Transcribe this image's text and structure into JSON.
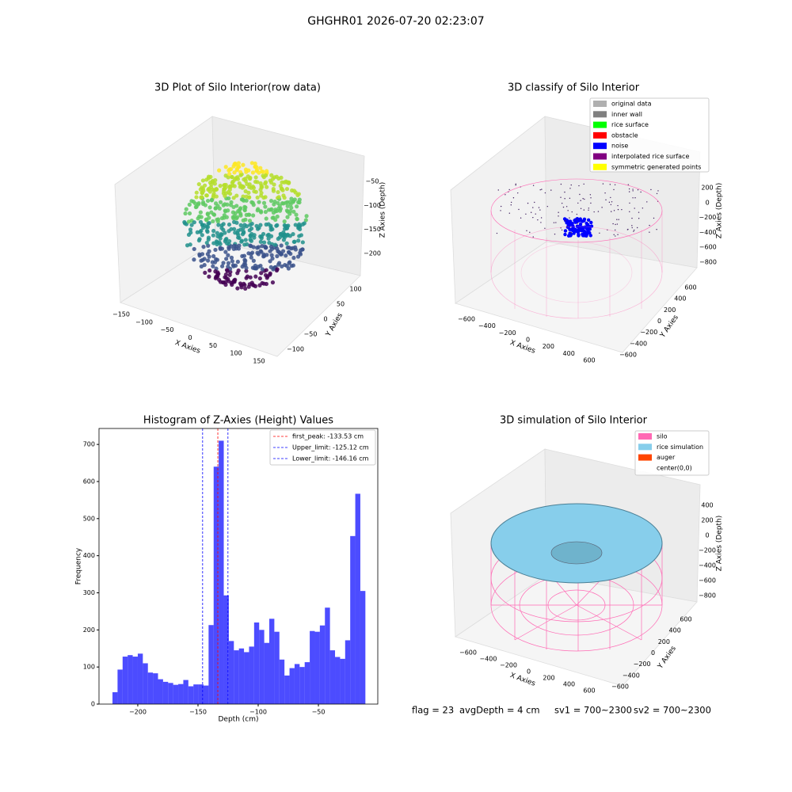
{
  "title": "GHGHR01 2026-07-20 02:23:07",
  "chart_data": [
    {
      "type": "scatter3d",
      "title": "3D Plot of Silo Interior(row data)",
      "xlabel": "X Axies",
      "ylabel": "Y Axies",
      "zlabel": "Z Axies (Depth)",
      "xticks": [
        {
          "value": -150,
          "label": "−150"
        },
        {
          "value": -100,
          "label": "−100"
        },
        {
          "value": -50,
          "label": "−50"
        },
        0,
        50,
        100,
        150
      ],
      "yticks": [
        {
          "value": -100,
          "label": "−100"
        },
        {
          "value": -50,
          "label": "−50"
        },
        0,
        50,
        100
      ],
      "zticks": [
        {
          "value": -50,
          "label": "−50"
        },
        {
          "value": -100,
          "label": "−100"
        },
        {
          "value": -150,
          "label": "−150"
        },
        {
          "value": -200,
          "label": "−200"
        }
      ]
    },
    {
      "type": "scatter3d",
      "title": "3D classify of Silo Interior",
      "xlabel": "X Axies",
      "ylabel": "Y Axies",
      "zlabel": "Z Axies (Depth)",
      "legend": [
        {
          "name": "original data",
          "color": "#b0b0b0"
        },
        {
          "name": "inner wall",
          "color": "#808080"
        },
        {
          "name": "rice surface",
          "color": "#00ff00"
        },
        {
          "name": "obstacle",
          "color": "#ff0000"
        },
        {
          "name": "noise",
          "color": "#0000ff"
        },
        {
          "name": "interpolated rice surface",
          "color": "#800080"
        },
        {
          "name": "symmetric generated points",
          "color": "#ffff00"
        }
      ],
      "xticks": [
        {
          "value": -600,
          "label": "−600"
        },
        {
          "value": -400,
          "label": "−400"
        },
        {
          "value": -200,
          "label": "−200"
        },
        0,
        200,
        400,
        600
      ],
      "yticks": [
        {
          "value": -600,
          "label": "−600"
        },
        {
          "value": -400,
          "label": "−400"
        },
        {
          "value": -200,
          "label": "−200"
        },
        0,
        200,
        400,
        600
      ],
      "zticks": [
        200,
        0,
        {
          "value": -200,
          "label": "−200"
        },
        {
          "value": -400,
          "label": "−400"
        },
        {
          "value": -600,
          "label": "−600"
        },
        {
          "value": -800,
          "label": "−800"
        }
      ]
    },
    {
      "type": "histogram",
      "title": "Histogram of Z-Axies (Height) Values",
      "xlabel": "Depth (cm)",
      "ylabel": "Frequency",
      "color": "#0000ff",
      "bins": [
        -221,
        -216.8,
        -212.6,
        -208.4,
        -204.2,
        -200,
        -195.8,
        -191.6,
        -187.4,
        -183.2,
        -179,
        -174.8,
        -170.6,
        -166.4,
        -162.2,
        -158,
        -153.8,
        -149.6,
        -145.4,
        -141.2,
        -137,
        -132.8,
        -128.6,
        -124.4,
        -120.2,
        -116,
        -111.8,
        -107.6,
        -103.4,
        -99.2,
        -95,
        -90.8,
        -86.6,
        -82.4,
        -78.2,
        -74,
        -69.8,
        -65.6,
        -61.4,
        -57.2,
        -53,
        -48.8,
        -44.6,
        -40.4,
        -36.2,
        -32,
        -27.8,
        -23.6,
        -19.4,
        -15.2,
        -11
      ],
      "counts": [
        32,
        93,
        128,
        132,
        128,
        136,
        110,
        85,
        83,
        67,
        60,
        57,
        52,
        54,
        65,
        48,
        53,
        53,
        50,
        213,
        640,
        710,
        293,
        170,
        145,
        150,
        140,
        155,
        220,
        200,
        165,
        230,
        195,
        120,
        77,
        97,
        108,
        100,
        113,
        197,
        195,
        212,
        260,
        145,
        127,
        122,
        172,
        453,
        567,
        305
      ],
      "xlim": [
        -232.2,
        -0.7
      ],
      "ylim": [
        0,
        743
      ],
      "xticks": [
        {
          "value": -200,
          "label": "−200"
        },
        {
          "value": -150,
          "label": "−150"
        },
        {
          "value": -100,
          "label": "−100"
        },
        {
          "value": -50,
          "label": "−50"
        }
      ],
      "yticks": [
        0,
        100,
        200,
        300,
        400,
        500,
        600,
        700
      ],
      "lines": [
        {
          "name": "first_peak: -133.53 cm",
          "value": -133.53,
          "color": "#ff0000"
        },
        {
          "name": "Upper_limit: -125.12 cm",
          "value": -125.12,
          "color": "#0000ff"
        },
        {
          "name": "Lower_limit: -146.16 cm",
          "value": -146.16,
          "color": "#0000ff"
        }
      ],
      "legend_position": "upper right"
    },
    {
      "type": "surface3d",
      "title": "3D simulation of Silo Interior",
      "xlabel": "X Axies",
      "ylabel": "Y Axies",
      "zlabel": "Z Axies (Depth)",
      "legend": [
        {
          "name": "silo",
          "color": "#ff69b4"
        },
        {
          "name": "rice simulation",
          "color": "#87ceeb"
        },
        {
          "name": "auger",
          "color": "#ff4500"
        },
        {
          "name": "center(0,0)",
          "color": "#ffffff"
        }
      ],
      "xticks": [
        {
          "value": -600,
          "label": "−600"
        },
        {
          "value": -400,
          "label": "−400"
        },
        {
          "value": -200,
          "label": "−200"
        },
        0,
        200,
        400,
        600
      ],
      "yticks": [
        {
          "value": -600,
          "label": "−600"
        },
        {
          "value": -400,
          "label": "−400"
        },
        {
          "value": -200,
          "label": "−200"
        },
        0,
        200,
        400,
        600
      ],
      "zticks": [
        400,
        200,
        0,
        {
          "value": -200,
          "label": "−200"
        },
        {
          "value": -400,
          "label": "−400"
        },
        {
          "value": -600,
          "label": "−600"
        },
        {
          "value": -800,
          "label": "−800"
        }
      ]
    }
  ],
  "status": [
    "flag = 23",
    "avgDepth = 4 cm",
    "sv1 = 700~2300",
    "sv2 = 700~2300"
  ]
}
